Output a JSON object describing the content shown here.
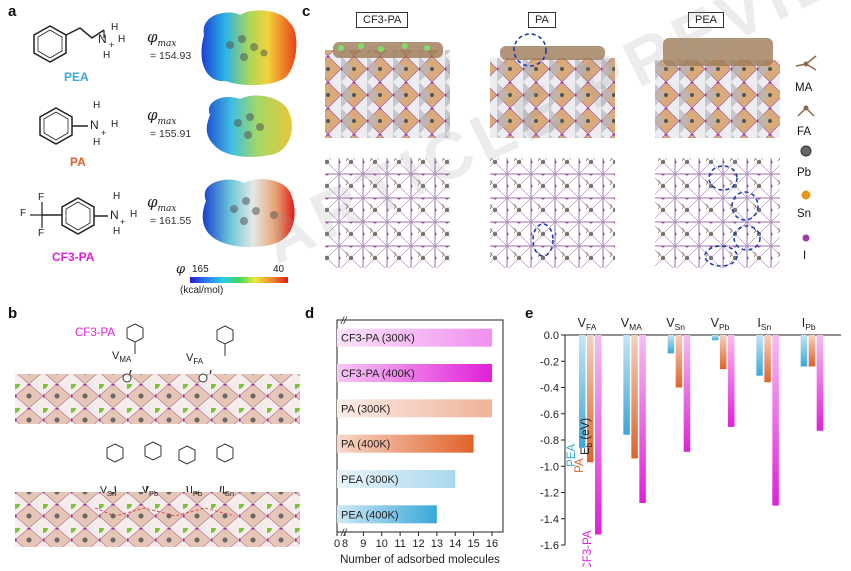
{
  "panels": {
    "a": "a",
    "b": "b",
    "c": "c",
    "d": "d",
    "e": "e"
  },
  "panel_a": {
    "molecules": [
      {
        "name": "PEA",
        "phi_value": "= 154.93",
        "color": "#3aa7d9"
      },
      {
        "name": "PA",
        "phi_value": "= 155.91",
        "color": "#e0622a"
      },
      {
        "name": "CF3-PA",
        "phi_value": "= 161.55",
        "color": "#e020d8"
      }
    ],
    "phi_symbol": "φ",
    "phi_sub": "max",
    "colorbar": {
      "symbol": "φ",
      "min": "165",
      "max": "40",
      "unit": "(kcal/mol)"
    },
    "atom_labels": {
      "N": "N",
      "H": "H",
      "plus": "+",
      "F": "F"
    }
  },
  "panel_b": {
    "molecule_label": "CF3-PA",
    "vacancy_top": [
      {
        "main": "V",
        "sub": "MA"
      },
      {
        "main": "V",
        "sub": "FA"
      }
    ],
    "vacancy_bottom": [
      {
        "main": "V",
        "sub": "Sn"
      },
      {
        "main": "V",
        "sub": "Pb"
      },
      {
        "main": "I",
        "sub": "Pb"
      },
      {
        "main": "I",
        "sub": "Sn"
      }
    ]
  },
  "panel_c": {
    "structures": [
      "CF3-PA",
      "PA",
      "PEA"
    ],
    "legend": [
      "MA",
      "FA",
      "Pb",
      "Sn",
      "I"
    ],
    "legend_colors": {
      "Pb": "#666666",
      "Sn": "#e8961e",
      "I": "#a23aa8"
    }
  },
  "chart_data": [
    {
      "type": "bar",
      "orientation": "horizontal",
      "categories": [
        "CF3-PA (300K)",
        "CF3-PA (400K)",
        "PA (300K)",
        "PA (400K)",
        "PEA (300K)",
        "PEA (400K)"
      ],
      "values": [
        16,
        16,
        16,
        15,
        14,
        13
      ],
      "colors": [
        "#f08ff0",
        "#e020d8",
        "#efb39a",
        "#e0622a",
        "#a9d8ee",
        "#3aa7d9"
      ],
      "xlabel": "Number of adsorbed molecules",
      "tick_labels": [
        "0",
        "8",
        "9",
        "10",
        "11",
        "12",
        "13",
        "14",
        "15",
        "16"
      ],
      "axis_break": "//",
      "xlim": [
        8,
        16.6
      ]
    },
    {
      "type": "bar",
      "categories": [
        {
          "main": "V",
          "sub": "FA"
        },
        {
          "main": "V",
          "sub": "MA"
        },
        {
          "main": "V",
          "sub": "Sn"
        },
        {
          "main": "V",
          "sub": "Pb"
        },
        {
          "main": "I",
          "sub": "Sn"
        },
        {
          "main": "I",
          "sub": "Pb"
        }
      ],
      "series": [
        {
          "name": "PEA",
          "color": "#3aa7d9",
          "values": [
            -0.86,
            -0.76,
            -0.14,
            -0.04,
            -0.31,
            -0.24
          ]
        },
        {
          "name": "PA",
          "color": "#e0622a",
          "values": [
            -0.97,
            -0.94,
            -0.4,
            -0.26,
            -0.36,
            -0.24
          ]
        },
        {
          "name": "CF3-PA",
          "color": "#e020d8",
          "values": [
            -1.52,
            -1.28,
            -0.89,
            -0.7,
            -1.3,
            -0.73
          ]
        }
      ],
      "ylabel_main": "E",
      "ylabel_sub": "b",
      "ylabel_rest": " (eV)",
      "ylim": [
        -1.6,
        0.0
      ],
      "tick_labels": [
        "0.0",
        "-0.2",
        "-0.4",
        "-0.6",
        "-0.8",
        "-1.0",
        "-1.2",
        "-1.4",
        "-1.6"
      ]
    }
  ],
  "watermark": "ARTICLE PREVIEW"
}
